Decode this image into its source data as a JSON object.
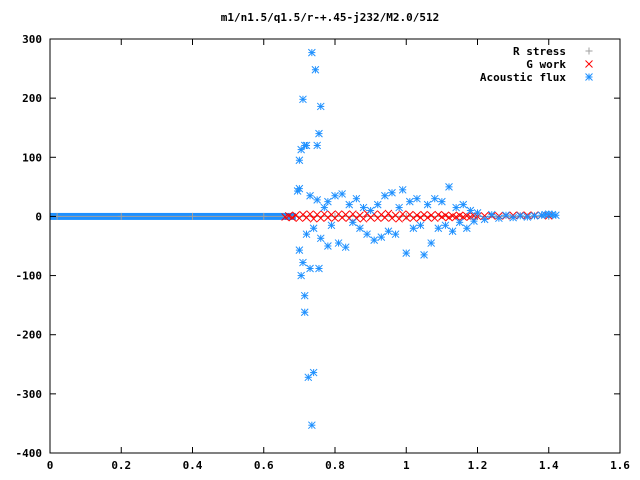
{
  "chart_data": {
    "type": "scatter",
    "title": "m1/n1.5/q1.5/r-+.45-j232/M2.0/512",
    "xlabel": "",
    "ylabel": "",
    "xlim": [
      0,
      1.6
    ],
    "ylim": [
      -400,
      300
    ],
    "x_ticks": [
      0,
      0.2,
      0.4,
      0.6,
      0.8,
      1,
      1.2,
      1.4,
      1.6
    ],
    "x_tick_labels": [
      "0",
      "0.2",
      "0.4",
      "0.6",
      "0.8",
      "1",
      "1.2",
      "1.4",
      "1.6"
    ],
    "y_ticks": [
      -400,
      -300,
      -200,
      -100,
      0,
      100,
      200,
      300
    ],
    "y_tick_labels": [
      "-400",
      "-300",
      "-200",
      "-100",
      "0",
      "100",
      "200",
      "300"
    ],
    "grid": false,
    "legend_position": "top-right",
    "series": [
      {
        "name": "R stress",
        "marker": "plus",
        "color": "#a0a0a0",
        "points": [
          [
            0.02,
            0
          ],
          [
            0.2,
            0
          ],
          [
            0.4,
            0
          ],
          [
            0.6,
            0
          ],
          [
            0.8,
            0
          ],
          [
            1.0,
            0
          ],
          [
            1.2,
            0
          ],
          [
            1.4,
            0
          ]
        ]
      },
      {
        "name": "G work",
        "marker": "cross",
        "color": "#ff0000",
        "points": [
          [
            0.66,
            -1
          ],
          [
            0.67,
            1
          ],
          [
            0.68,
            -2
          ],
          [
            0.69,
            2
          ],
          [
            0.7,
            -3
          ],
          [
            0.71,
            3
          ],
          [
            0.72,
            -2
          ],
          [
            0.73,
            4
          ],
          [
            0.74,
            -4
          ],
          [
            0.75,
            3
          ],
          [
            0.76,
            -3
          ],
          [
            0.77,
            4
          ],
          [
            0.78,
            -2
          ],
          [
            0.79,
            3
          ],
          [
            0.8,
            -3
          ],
          [
            0.81,
            4
          ],
          [
            0.82,
            -2
          ],
          [
            0.83,
            3
          ],
          [
            0.84,
            -3
          ],
          [
            0.85,
            4
          ],
          [
            0.86,
            -3
          ],
          [
            0.87,
            2
          ],
          [
            0.88,
            -4
          ],
          [
            0.89,
            5
          ],
          [
            0.9,
            -2
          ],
          [
            0.91,
            4
          ],
          [
            0.92,
            -3
          ],
          [
            0.93,
            3
          ],
          [
            0.94,
            -2
          ],
          [
            0.95,
            5
          ],
          [
            0.96,
            -3
          ],
          [
            0.97,
            2
          ],
          [
            0.98,
            -4
          ],
          [
            0.99,
            4
          ],
          [
            1.0,
            -2
          ],
          [
            1.01,
            3
          ],
          [
            1.02,
            -3
          ],
          [
            1.03,
            2
          ],
          [
            1.04,
            -2
          ],
          [
            1.05,
            3
          ],
          [
            1.06,
            -2
          ],
          [
            1.07,
            2
          ],
          [
            1.08,
            -3
          ],
          [
            1.09,
            3
          ],
          [
            1.1,
            -1
          ],
          [
            1.11,
            2
          ],
          [
            1.12,
            -2
          ],
          [
            1.13,
            1
          ],
          [
            1.14,
            -1
          ],
          [
            1.15,
            2
          ],
          [
            1.16,
            -1
          ],
          [
            1.17,
            1
          ],
          [
            1.18,
            -1
          ],
          [
            1.19,
            1
          ],
          [
            1.2,
            0
          ],
          [
            1.22,
            1
          ],
          [
            1.24,
            1
          ],
          [
            1.26,
            1
          ],
          [
            1.28,
            1
          ],
          [
            1.3,
            2
          ],
          [
            1.32,
            2
          ],
          [
            1.34,
            2
          ],
          [
            1.36,
            2
          ],
          [
            1.38,
            2
          ],
          [
            1.4,
            1
          ]
        ]
      },
      {
        "name": "Acoustic flux",
        "marker": "star",
        "color": "#1e90ff",
        "points": [
          [
            0.7,
            95
          ],
          [
            0.705,
            113
          ],
          [
            0.71,
            198
          ],
          [
            0.715,
            120
          ],
          [
            0.72,
            120
          ],
          [
            0.735,
            277
          ],
          [
            0.745,
            248
          ],
          [
            0.75,
            120
          ],
          [
            0.755,
            140
          ],
          [
            0.76,
            186
          ],
          [
            0.695,
            43
          ],
          [
            0.7,
            47
          ],
          [
            0.72,
            -30
          ],
          [
            0.73,
            35
          ],
          [
            0.74,
            -20
          ],
          [
            0.75,
            28
          ],
          [
            0.76,
            -37
          ],
          [
            0.77,
            15
          ],
          [
            0.78,
            25
          ],
          [
            0.79,
            -15
          ],
          [
            0.7,
            -57
          ],
          [
            0.705,
            -100
          ],
          [
            0.71,
            -78
          ],
          [
            0.715,
            -134
          ],
          [
            0.715,
            -162
          ],
          [
            0.725,
            -272
          ],
          [
            0.74,
            -264
          ],
          [
            0.73,
            -88
          ],
          [
            0.755,
            -88
          ],
          [
            0.735,
            -353
          ],
          [
            0.78,
            -50
          ],
          [
            0.8,
            35
          ],
          [
            0.81,
            -45
          ],
          [
            0.82,
            38
          ],
          [
            0.83,
            -52
          ],
          [
            0.84,
            20
          ],
          [
            0.85,
            -10
          ],
          [
            0.86,
            30
          ],
          [
            0.87,
            -20
          ],
          [
            0.88,
            15
          ],
          [
            0.89,
            -30
          ],
          [
            0.9,
            10
          ],
          [
            0.91,
            -40
          ],
          [
            0.92,
            20
          ],
          [
            0.93,
            -35
          ],
          [
            0.94,
            35
          ],
          [
            0.95,
            -25
          ],
          [
            0.96,
            40
          ],
          [
            0.97,
            -30
          ],
          [
            0.98,
            15
          ],
          [
            0.99,
            45
          ],
          [
            1.0,
            -62
          ],
          [
            1.01,
            25
          ],
          [
            1.02,
            -20
          ],
          [
            1.03,
            30
          ],
          [
            1.04,
            -15
          ],
          [
            1.05,
            -65
          ],
          [
            1.06,
            20
          ],
          [
            1.07,
            -45
          ],
          [
            1.08,
            30
          ],
          [
            1.09,
            -20
          ],
          [
            1.1,
            25
          ],
          [
            1.11,
            -15
          ],
          [
            1.12,
            50
          ],
          [
            1.13,
            -25
          ],
          [
            1.14,
            15
          ],
          [
            1.15,
            -10
          ],
          [
            1.16,
            20
          ],
          [
            1.17,
            -20
          ],
          [
            1.18,
            10
          ],
          [
            1.19,
            -8
          ],
          [
            1.2,
            6
          ],
          [
            1.22,
            -5
          ],
          [
            1.24,
            3
          ],
          [
            1.26,
            -3
          ],
          [
            1.28,
            2
          ],
          [
            1.3,
            -2
          ],
          [
            1.32,
            1
          ],
          [
            1.34,
            -1
          ],
          [
            1.36,
            1
          ],
          [
            1.38,
            2
          ],
          [
            1.39,
            3
          ],
          [
            1.4,
            4
          ],
          [
            1.41,
            3
          ],
          [
            1.42,
            2
          ]
        ]
      }
    ]
  }
}
